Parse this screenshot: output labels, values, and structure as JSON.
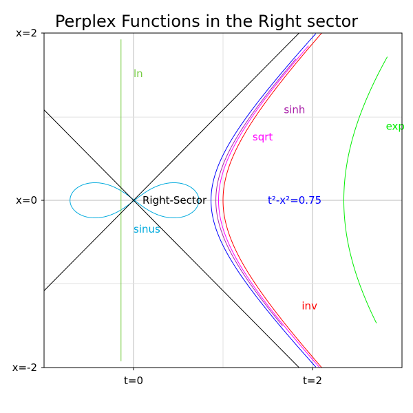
{
  "chart_data": {
    "type": "line",
    "title": "Perplex Functions in the Right sector",
    "xlabel": "",
    "ylabel": "",
    "xlim": [
      -1.0,
      3.0
    ],
    "ylim": [
      -1.85,
      1.85
    ],
    "grid": true,
    "x_ticks": [
      {
        "value": 0,
        "label": "t=0"
      },
      {
        "value": 2,
        "label": "t=2"
      }
    ],
    "y_ticks": [
      {
        "value": 1.85,
        "label": "x=2"
      },
      {
        "value": 0,
        "label": "x=0"
      },
      {
        "value": -1.85,
        "label": "x=-2"
      }
    ],
    "minor_grid_x": [
      1.0
    ],
    "minor_grid_y": [
      0.92,
      -0.92
    ],
    "series": [
      {
        "name": "t²-x²=0.75",
        "func": "hyperbola",
        "k": 0.75,
        "t_range": [
          -1.5,
          1.5
        ],
        "color": "#0000ff"
      },
      {
        "name": "sinh",
        "func": "sinh_branch",
        "t_range": [
          -1.2,
          1.3
        ],
        "color": "#aa22aa"
      },
      {
        "name": "sqrt",
        "func": "sqrt_branch",
        "t_range": [
          -1.5,
          1.35
        ],
        "color": "#ff00ff"
      },
      {
        "name": "inv",
        "func": "hyperbola",
        "k": 1.0,
        "t_range": [
          -1.5,
          1.5
        ],
        "color": "#ff0000"
      },
      {
        "name": "exp",
        "func": "exp_branch",
        "t_range": [
          -1.0,
          1.15
        ],
        "color": "#00ee00"
      },
      {
        "name": "sinus",
        "func": "lemniscate",
        "t_range": [
          -3.1416,
          3.1416
        ],
        "color": "#00aadd"
      },
      {
        "name": "ln",
        "func": "vertical",
        "x_value": -0.14,
        "y_range": [
          -1.78,
          1.78
        ],
        "color": "#77cc44"
      },
      {
        "name": "",
        "func": "diagonal",
        "slope": 1,
        "color": "#000000"
      },
      {
        "name": "",
        "func": "diagonal",
        "slope": -1,
        "color": "#000000"
      }
    ],
    "labels": [
      {
        "text": "ln",
        "x": 0.0,
        "y": 1.4,
        "color": "#77cc44"
      },
      {
        "text": "sinh",
        "x": 1.68,
        "y": 1.0,
        "color": "#aa22aa"
      },
      {
        "text": "sqrt",
        "x": 1.33,
        "y": 0.7,
        "color": "#ff00ff"
      },
      {
        "text": "exp",
        "x": 2.82,
        "y": 0.82,
        "color": "#00ee00"
      },
      {
        "text": "Right-Sector",
        "x": 0.1,
        "y": 0.0,
        "color": "#000000"
      },
      {
        "text": "t²-x²=0.75",
        "x": 1.5,
        "y": 0.0,
        "color": "#0000ff"
      },
      {
        "text": "sinus",
        "x": 0.0,
        "y": -0.32,
        "color": "#00aadd"
      },
      {
        "text": "inv",
        "x": 1.88,
        "y": -1.17,
        "color": "#ff0000"
      }
    ]
  }
}
